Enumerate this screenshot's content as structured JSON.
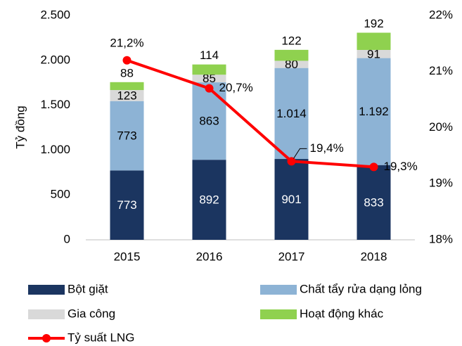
{
  "chart_data": {
    "type": "bar",
    "stacked": true,
    "y_label": "Tỷ đồng",
    "categories": [
      "2015",
      "2016",
      "2017",
      "2018"
    ],
    "series": [
      {
        "name": "Bột giặt",
        "color": "#1b3560",
        "values": [
          773,
          892,
          901,
          833
        ]
      },
      {
        "name": "Chất tẩy rửa dạng lỏng",
        "color": "#8db3d5",
        "values": [
          773,
          863,
          1014,
          1192
        ],
        "value_labels": [
          "773",
          "863",
          "1.014",
          "1.192"
        ]
      },
      {
        "name": "Gia công",
        "color": "#d9d9d9",
        "values": [
          123,
          85,
          80,
          91
        ]
      },
      {
        "name": "Hoạt động khác",
        "color": "#8fd14f",
        "values": [
          88,
          114,
          122,
          192
        ]
      },
      {
        "name": "Tỷ suất LNG",
        "color": "#ff0000",
        "type": "line",
        "axis": "y2",
        "values": [
          21.2,
          20.7,
          19.4,
          19.3
        ],
        "value_labels": [
          "21,2%",
          "20,7%",
          "19,4%",
          "19,3%"
        ]
      }
    ],
    "ylim": [
      0,
      2500
    ],
    "yticks": [
      0,
      500,
      {
        "value": 1000,
        "label": "1.000"
      },
      {
        "value": 1500,
        "label": "1.500"
      },
      {
        "value": 2000,
        "label": "2.000"
      },
      {
        "value": 2500,
        "label": "2.500"
      }
    ],
    "y2lim": [
      18,
      22
    ],
    "y2ticks": [
      {
        "value": 18,
        "label": "18%"
      },
      {
        "value": 19,
        "label": "19%"
      },
      {
        "value": 20,
        "label": "20%"
      },
      {
        "value": 21,
        "label": "21%"
      },
      {
        "value": 22,
        "label": "22%"
      }
    ],
    "grid": false,
    "legend": "bottom"
  }
}
